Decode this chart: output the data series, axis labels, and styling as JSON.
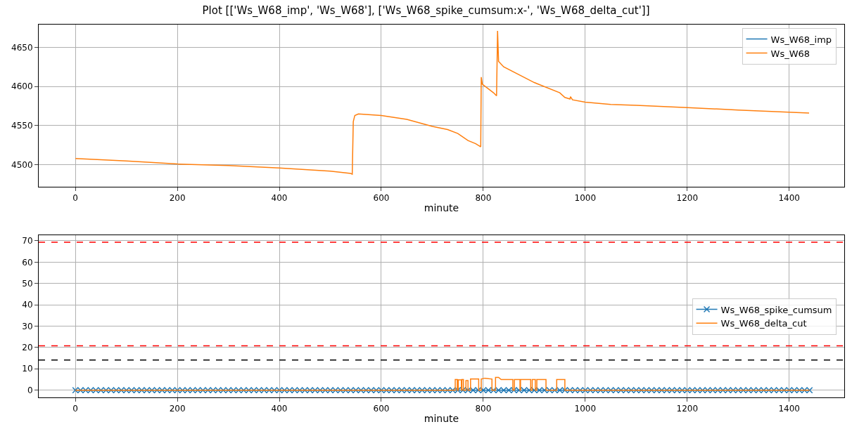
{
  "chart_data": [
    {
      "type": "line",
      "title": "Plot [['Ws_W68_imp', 'Ws_W68'], ['Ws_W68_spike_cumsum:x-', 'Ws_W68_delta_cut']]",
      "xlabel": "minute",
      "series": [
        {
          "name": "Ws_W68_imp",
          "color": "#1f77b4",
          "values": [
            null
          ]
        },
        {
          "name": "Ws_W68",
          "color": "#ff7f0e",
          "x": [
            0,
            100,
            200,
            300,
            400,
            500,
            540,
            543,
            545,
            548,
            555,
            600,
            650,
            700,
            730,
            750,
            770,
            785,
            795,
            796,
            798,
            820,
            826,
            828,
            830,
            840,
            900,
            950,
            960,
            970,
            971,
            975,
            1000,
            1050,
            1100,
            1200,
            1300,
            1439
          ],
          "values": [
            4508,
            4505,
            4501,
            4499,
            4496,
            4492,
            4489,
            4488,
            4555,
            4563,
            4565,
            4563,
            4558,
            4549,
            4545,
            4540,
            4531,
            4527,
            4523,
            4612,
            4603,
            4592,
            4588,
            4671,
            4632,
            4625,
            4605,
            4592,
            4586,
            4584,
            4587,
            4583,
            4580,
            4577,
            4576,
            4573,
            4570,
            4566
          ]
        }
      ],
      "xlim": [
        -72,
        1508
      ],
      "xticks": [
        0,
        200,
        400,
        600,
        800,
        1000,
        1200,
        1400
      ],
      "ylim": [
        4472,
        4679
      ],
      "yticks": [
        4500,
        4550,
        4600,
        4650
      ],
      "grid": true,
      "legend": "top right"
    },
    {
      "type": "line",
      "xlabel": "minute",
      "series": [
        {
          "name": "Ws_W68_spike_cumsum",
          "color": "#1f77b4",
          "marker": "cross",
          "x": [
            0,
            10,
            20,
            30,
            40,
            50,
            60,
            70,
            80,
            90,
            100,
            110,
            120,
            130,
            140,
            150,
            160,
            170,
            180,
            190,
            200,
            210,
            220,
            230,
            240,
            250,
            260,
            270,
            280,
            290,
            300,
            310,
            320,
            330,
            340,
            350,
            360,
            370,
            380,
            390,
            400,
            410,
            420,
            430,
            440,
            450,
            460,
            470,
            480,
            490,
            500,
            510,
            520,
            530,
            540,
            550,
            560,
            570,
            580,
            590,
            600,
            610,
            620,
            630,
            640,
            650,
            660,
            670,
            680,
            690,
            700,
            710,
            720,
            730,
            740,
            750,
            760,
            770,
            780,
            790,
            800,
            810,
            820,
            830,
            840,
            850,
            860,
            870,
            880,
            890,
            900,
            910,
            920,
            930,
            940,
            950,
            960,
            970,
            980,
            990,
            1000,
            1010,
            1020,
            1030,
            1040,
            1050,
            1060,
            1070,
            1080,
            1090,
            1100,
            1110,
            1120,
            1130,
            1140,
            1150,
            1160,
            1170,
            1180,
            1190,
            1200,
            1210,
            1220,
            1230,
            1240,
            1250,
            1260,
            1270,
            1280,
            1290,
            1300,
            1310,
            1320,
            1330,
            1340,
            1350,
            1360,
            1370,
            1380,
            1390,
            1400,
            1410,
            1420,
            1430,
            1440
          ],
          "values": [
            0,
            0,
            0,
            0,
            0,
            0,
            0,
            0,
            0,
            0,
            0,
            0,
            0,
            0,
            0,
            0,
            0,
            0,
            0,
            0,
            0,
            0,
            0,
            0,
            0,
            0,
            0,
            0,
            0,
            0,
            0,
            0,
            0,
            0,
            0,
            0,
            0,
            0,
            0,
            0,
            0,
            0,
            0,
            0,
            0,
            0,
            0,
            0,
            0,
            0,
            0,
            0,
            0,
            0,
            0,
            0,
            0,
            0,
            0,
            0,
            0,
            0,
            0,
            0,
            0,
            0,
            0,
            0,
            0,
            0,
            0,
            0,
            0,
            0,
            0,
            0,
            0,
            0,
            0,
            0,
            0,
            0,
            0,
            0,
            0,
            0,
            0,
            0,
            0,
            0,
            0,
            0,
            0,
            0,
            0,
            0,
            0,
            0,
            0,
            0,
            0,
            0,
            0,
            0,
            0,
            0,
            0,
            0,
            0,
            0,
            0,
            0,
            0,
            0,
            0,
            0,
            0,
            0,
            0,
            0,
            0,
            0,
            0,
            0,
            0,
            0,
            0,
            0,
            0,
            0,
            0,
            0,
            0,
            0,
            0,
            0,
            0,
            0,
            0,
            0,
            0,
            0,
            0,
            0,
            0
          ]
        },
        {
          "name": "Ws_W68_delta_cut",
          "color": "#ff7f0e",
          "marker": "none",
          "x": [
            0,
            745,
            745,
            749,
            749,
            751,
            751,
            757,
            757,
            758,
            758,
            761,
            761,
            766,
            766,
            770,
            770,
            775,
            775,
            791,
            791,
            796,
            796,
            803,
            817,
            817,
            824,
            824,
            830,
            835,
            858,
            858,
            861,
            861,
            872,
            872,
            873,
            873,
            893,
            893,
            896,
            896,
            902,
            902,
            905,
            905,
            923,
            923,
            944,
            944,
            960,
            960,
            1440
          ],
          "values": [
            0,
            0,
            5,
            5,
            0,
            0,
            4.8,
            4.8,
            0,
            0,
            5,
            5,
            0,
            0,
            4.5,
            4.5,
            0,
            0,
            5.2,
            5.2,
            0,
            0,
            5.2,
            5.6,
            5.2,
            0,
            0,
            6,
            6,
            5,
            5,
            0,
            0,
            5,
            5,
            0,
            0,
            5,
            5,
            0,
            0,
            5,
            5,
            0,
            0,
            5,
            5,
            0,
            0,
            5,
            5,
            0,
            0
          ]
        }
      ],
      "ref_lines": [
        {
          "axis": "y",
          "value": 69.3,
          "color": "#ff0000",
          "line_style": "dashed"
        },
        {
          "axis": "y",
          "value": 20.8,
          "color": "#ff0000",
          "line_style": "dashed"
        },
        {
          "axis": "y",
          "value": 14.1,
          "color": "#000000",
          "line_style": "dashed"
        }
      ],
      "xlim": [
        -72,
        1508
      ],
      "xticks": [
        0,
        200,
        400,
        600,
        800,
        1000,
        1200,
        1400
      ],
      "ylim": [
        -3.4,
        72.6
      ],
      "yticks": [
        0,
        10,
        20,
        30,
        40,
        50,
        60,
        70
      ],
      "grid": true,
      "legend": "right"
    }
  ]
}
